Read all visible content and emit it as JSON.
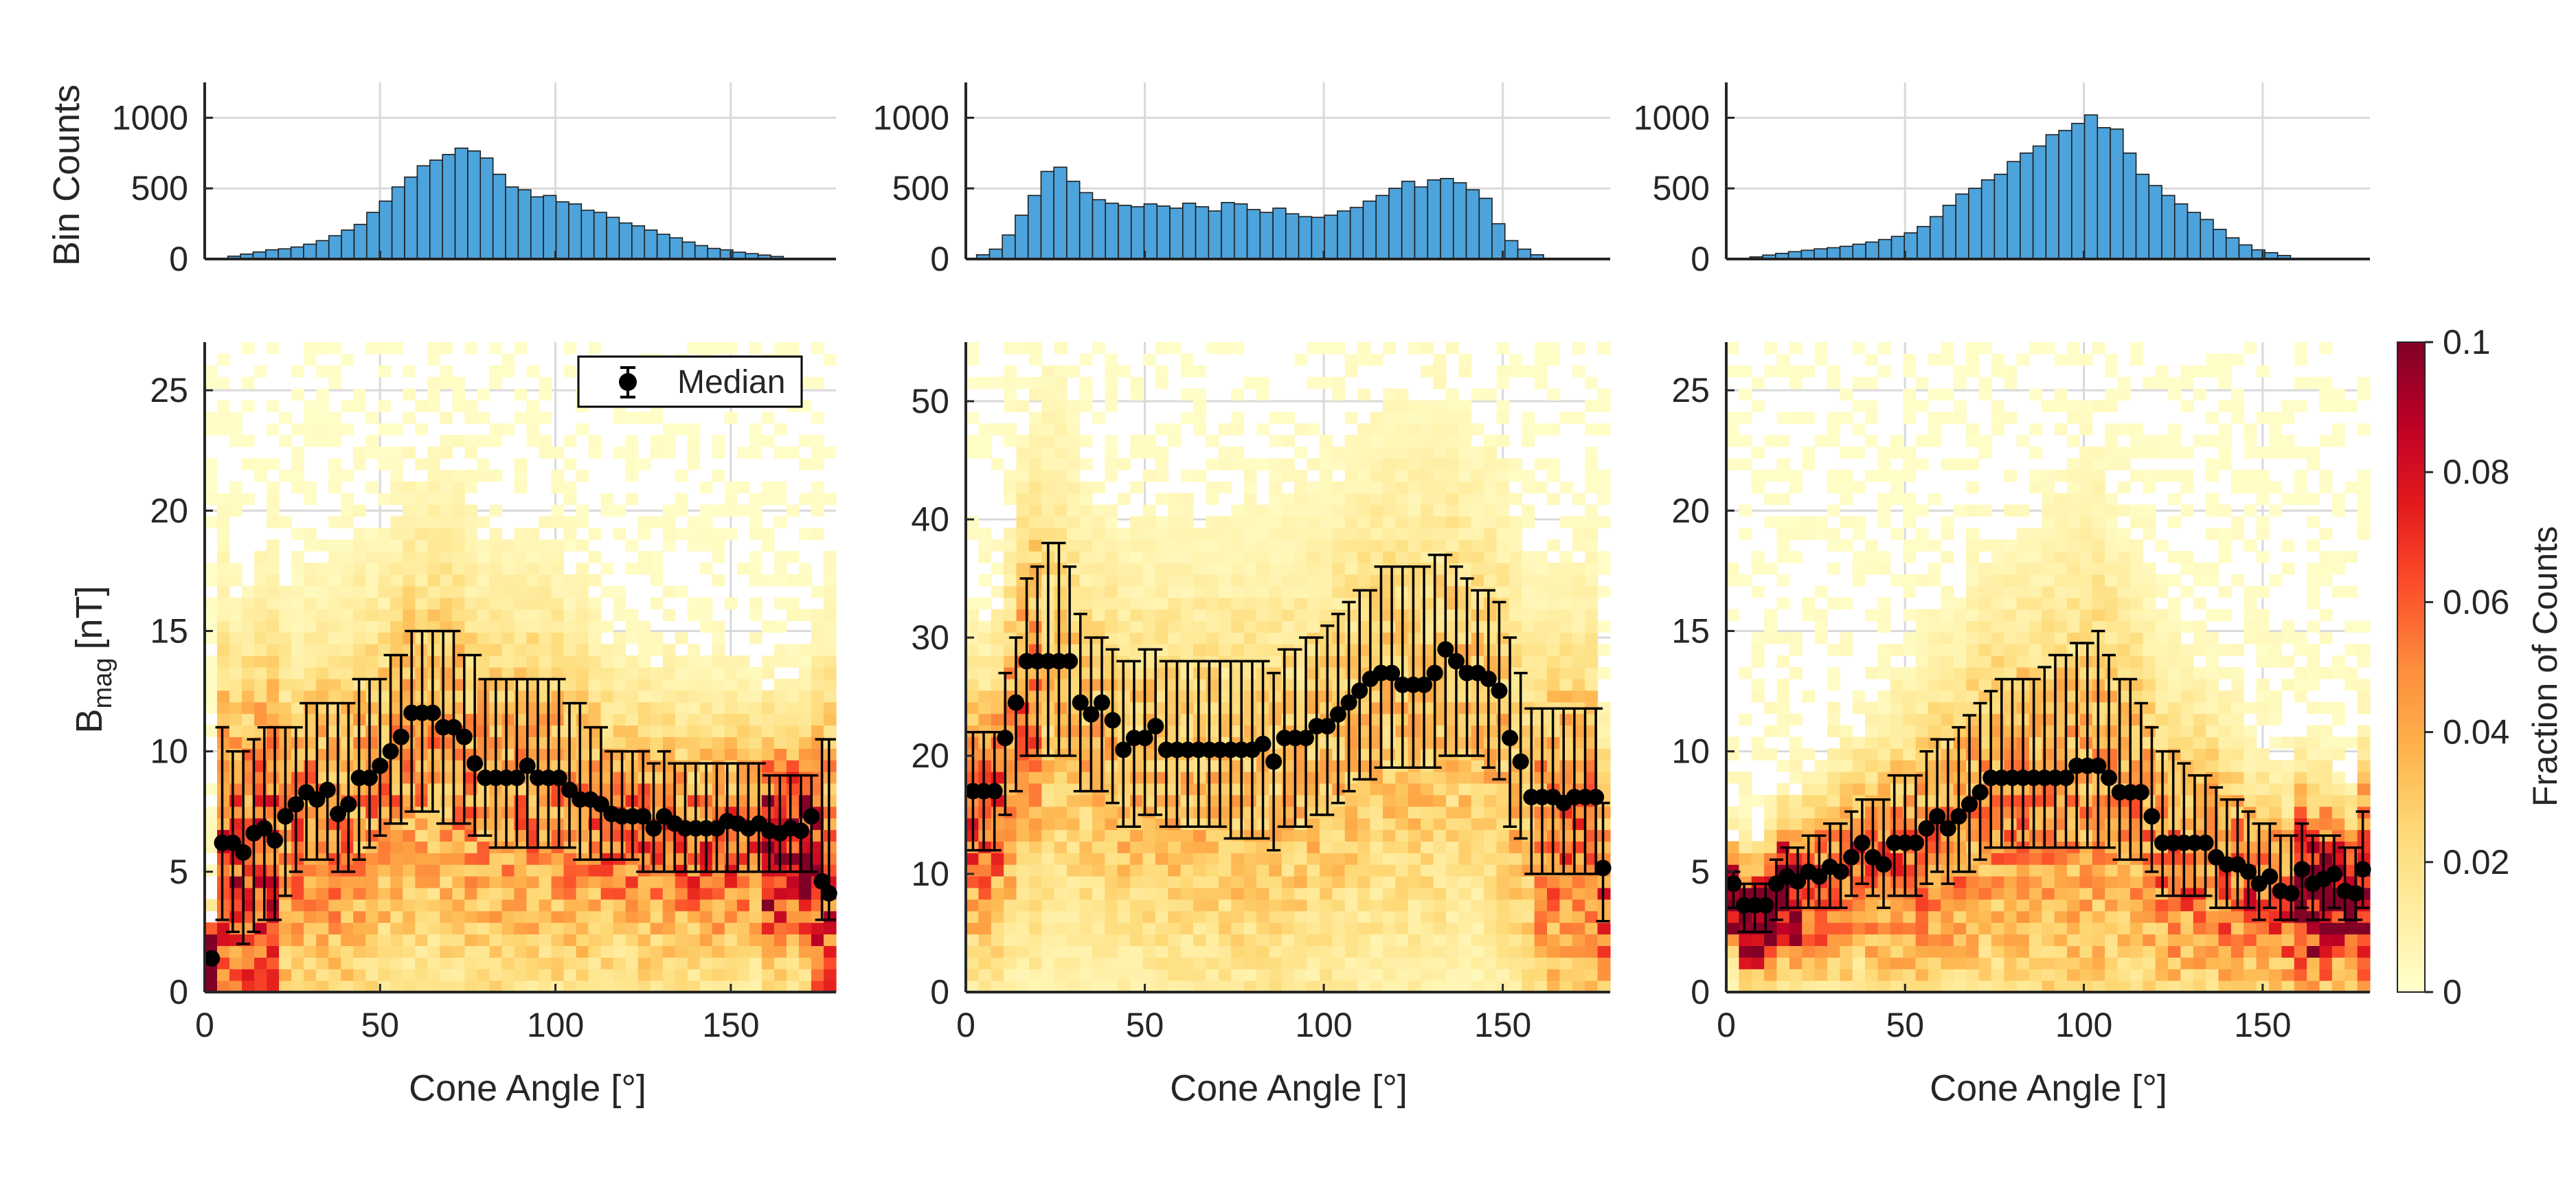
{
  "chart_data": [
    {
      "type": "bar",
      "panel": "top-left",
      "ylabel": "Bin Counts",
      "ylim": [
        0,
        1250
      ],
      "yticks": [
        0,
        500,
        1000
      ],
      "ytick_labels": [
        "0",
        "500",
        "1000"
      ],
      "xlim": [
        0,
        180
      ],
      "xticks": [
        50,
        100,
        150
      ],
      "grid": true,
      "bar_color": "#4DA3DB",
      "bin_width": 3.6,
      "values": [
        5,
        20,
        35,
        50,
        65,
        72,
        85,
        105,
        130,
        165,
        205,
        245,
        330,
        410,
        510,
        580,
        660,
        700,
        740,
        785,
        765,
        715,
        600,
        510,
        490,
        440,
        450,
        405,
        390,
        345,
        330,
        295,
        255,
        235,
        205,
        175,
        150,
        120,
        95,
        75,
        65,
        48,
        38,
        28,
        18
      ]
    },
    {
      "type": "bar",
      "panel": "top-middle",
      "ylim": [
        0,
        1250
      ],
      "yticks": [
        0,
        500,
        1000
      ],
      "ytick_labels": [
        "0",
        "500",
        "1000"
      ],
      "xlim": [
        0,
        180
      ],
      "grid": true,
      "bar_color": "#4DA3DB",
      "bin_width": 3.6,
      "values": [
        30,
        70,
        170,
        310,
        450,
        620,
        650,
        550,
        470,
        420,
        395,
        380,
        370,
        390,
        375,
        360,
        395,
        370,
        340,
        400,
        390,
        350,
        330,
        360,
        320,
        300,
        295,
        310,
        340,
        365,
        410,
        450,
        500,
        550,
        510,
        560,
        570,
        540,
        490,
        430,
        250,
        130,
        70,
        30
      ]
    },
    {
      "type": "bar",
      "panel": "top-right",
      "ylim": [
        0,
        1250
      ],
      "yticks": [
        0,
        500,
        1000
      ],
      "ytick_labels": [
        "0",
        "500",
        "1000"
      ],
      "xlim": [
        0,
        180
      ],
      "grid": true,
      "bar_color": "#4DA3DB",
      "bin_width": 3.6,
      "values": [
        5,
        15,
        28,
        40,
        52,
        62,
        72,
        80,
        90,
        105,
        120,
        138,
        160,
        185,
        230,
        300,
        380,
        460,
        500,
        560,
        600,
        690,
        750,
        800,
        880,
        910,
        960,
        1020,
        930,
        920,
        750,
        600,
        520,
        450,
        390,
        330,
        280,
        210,
        150,
        100,
        65,
        45,
        25
      ]
    },
    {
      "type": "heatmap",
      "panel": "bottom-left",
      "xlabel": "Cone Angle [°]",
      "ylabel": "B_mag [nT]",
      "ylabel_main": "B",
      "ylabel_sub": "mag",
      "ylabel_unit": "[nT]",
      "xlim": [
        0,
        180
      ],
      "ylim": [
        0,
        27
      ],
      "xticks": [
        0,
        50,
        100,
        150
      ],
      "xtick_labels": [
        "0",
        "50",
        "100",
        "150"
      ],
      "yticks": [
        0,
        5,
        10,
        15,
        20,
        25
      ],
      "ytick_labels": [
        "0",
        "5",
        "10",
        "15",
        "20",
        "25"
      ],
      "legend": {
        "label": "Median",
        "location": "top-right"
      },
      "median_series": {
        "x": [
          2,
          5,
          8,
          11,
          14,
          17,
          20,
          23,
          26,
          29,
          32,
          35,
          38,
          41,
          44,
          47,
          50,
          53,
          56,
          59,
          62,
          65,
          68,
          71,
          74,
          77,
          80,
          83,
          86,
          89,
          92,
          95,
          98,
          101,
          104,
          107,
          110,
          113,
          116,
          119,
          122,
          125,
          128,
          131,
          134,
          137,
          140,
          143,
          146,
          149,
          152,
          155,
          158,
          161,
          164,
          167,
          170,
          173,
          176,
          178
        ],
        "median": [
          1.4,
          6.2,
          6.2,
          5.8,
          6.6,
          6.8,
          6.3,
          7.3,
          7.8,
          8.3,
          8.0,
          8.4,
          7.4,
          7.8,
          8.9,
          8.9,
          9.4,
          10.0,
          10.6,
          11.6,
          11.6,
          11.6,
          11.0,
          11.0,
          10.6,
          9.5,
          8.9,
          8.9,
          8.9,
          8.9,
          9.4,
          8.9,
          8.9,
          8.9,
          8.4,
          8.0,
          8.0,
          7.8,
          7.4,
          7.3,
          7.3,
          7.3,
          6.8,
          7.3,
          7.0,
          6.8,
          6.8,
          6.8,
          6.8,
          7.1,
          7.0,
          6.8,
          7.0,
          6.7,
          6.6,
          6.8,
          6.7,
          7.3,
          4.6,
          4.1
        ],
        "lower": [
          1.4,
          3.0,
          2.5,
          2.0,
          2.5,
          3.0,
          3.0,
          4.0,
          5.0,
          5.5,
          5.5,
          5.5,
          5.0,
          5.0,
          5.5,
          6.0,
          6.5,
          7.0,
          7.0,
          7.5,
          7.5,
          7.5,
          7.0,
          7.0,
          7.0,
          6.5,
          6.5,
          6.0,
          6.0,
          6.0,
          6.0,
          6.0,
          6.0,
          6.0,
          6.0,
          5.5,
          5.5,
          5.5,
          5.5,
          5.5,
          5.5,
          5.0,
          5.0,
          5.0,
          5.0,
          5.0,
          5.0,
          5.0,
          5.0,
          5.0,
          5.0,
          5.0,
          5.0,
          5.0,
          5.0,
          5.0,
          5.0,
          5.0,
          3.0,
          3.0
        ],
        "upper": [
          1.4,
          11.0,
          10.0,
          10.0,
          10.5,
          11.0,
          11.0,
          11.0,
          11.0,
          12.0,
          12.0,
          12.0,
          12.0,
          12.0,
          13.0,
          13.0,
          13.0,
          14.0,
          14.0,
          15.0,
          15.0,
          15.0,
          15.0,
          15.0,
          14.0,
          14.0,
          13.0,
          13.0,
          13.0,
          13.0,
          13.0,
          13.0,
          13.0,
          13.0,
          12.0,
          12.0,
          11.0,
          11.0,
          10.0,
          10.0,
          10.0,
          10.0,
          9.5,
          10.0,
          9.5,
          9.5,
          9.5,
          9.5,
          9.5,
          9.5,
          9.5,
          9.5,
          9.5,
          9.0,
          9.0,
          9.0,
          9.0,
          9.0,
          10.5,
          10.5
        ]
      }
    },
    {
      "type": "heatmap",
      "panel": "bottom-middle",
      "xlabel": "Cone Angle [°]",
      "xlim": [
        0,
        180
      ],
      "ylim": [
        0,
        55
      ],
      "xticks": [
        0,
        50,
        100,
        150
      ],
      "xtick_labels": [
        "0",
        "50",
        "100",
        "150"
      ],
      "yticks": [
        0,
        10,
        20,
        30,
        40,
        50
      ],
      "ytick_labels": [
        "0",
        "10",
        "20",
        "30",
        "40",
        "50"
      ],
      "median_series": {
        "x": [
          2,
          5,
          8,
          11,
          14,
          17,
          20,
          23,
          26,
          29,
          32,
          35,
          38,
          41,
          44,
          47,
          50,
          53,
          56,
          59,
          62,
          65,
          68,
          71,
          74,
          77,
          80,
          83,
          86,
          89,
          92,
          95,
          98,
          101,
          104,
          107,
          110,
          113,
          116,
          119,
          122,
          125,
          128,
          131,
          134,
          137,
          140,
          143,
          146,
          149,
          152,
          155,
          158,
          161,
          164,
          167,
          170,
          173,
          176,
          178
        ],
        "median": [
          17,
          17,
          17,
          21.5,
          24.5,
          28,
          28,
          28,
          28,
          28,
          24.5,
          23.5,
          24.5,
          23,
          20.5,
          21.5,
          21.5,
          22.5,
          20.5,
          20.5,
          20.5,
          20.5,
          20.5,
          20.5,
          20.5,
          20.5,
          20.5,
          21,
          19.5,
          21.5,
          21.5,
          21.5,
          22.5,
          22.5,
          23.5,
          24.5,
          25.5,
          26.5,
          27,
          27,
          26,
          26,
          26,
          27,
          29,
          28,
          27,
          27,
          26.5,
          25.5,
          21.5,
          19.5,
          16.5,
          16.5,
          16.5,
          16,
          16.5,
          16.5,
          16.5,
          10.5
        ],
        "upper": [
          22,
          22,
          22,
          27,
          30,
          35,
          36,
          38,
          38,
          36,
          32,
          30,
          30,
          29,
          28,
          28,
          29,
          29,
          28,
          28,
          28,
          28,
          28,
          28,
          28,
          28,
          28,
          28,
          27,
          29,
          29,
          30,
          30,
          31,
          32,
          33,
          34,
          34,
          36,
          36,
          36,
          36,
          36,
          37,
          37,
          36,
          35,
          34,
          34,
          33,
          30,
          27,
          24,
          24,
          24,
          24,
          24,
          24,
          24,
          16
        ],
        "lower": [
          12,
          12,
          12,
          15,
          17,
          20,
          20,
          20,
          20,
          20,
          17,
          17,
          17,
          16,
          14,
          14,
          15,
          15,
          14,
          14,
          14,
          14,
          14,
          14,
          13,
          13,
          13,
          13,
          12,
          14,
          14,
          14,
          15,
          15,
          16,
          17,
          18,
          18,
          19,
          19,
          19,
          19,
          19,
          19,
          20,
          20,
          20,
          20,
          19,
          18,
          14,
          13,
          10,
          10,
          10,
          10,
          10,
          10,
          10,
          6
        ]
      }
    },
    {
      "type": "heatmap",
      "panel": "bottom-right",
      "xlabel": "Cone Angle [°]",
      "xlim": [
        0,
        180
      ],
      "ylim": [
        0,
        27
      ],
      "xticks": [
        0,
        50,
        100,
        150
      ],
      "xtick_labels": [
        "0",
        "50",
        "100",
        "150"
      ],
      "yticks": [
        0,
        5,
        10,
        15,
        20,
        25
      ],
      "ytick_labels": [
        "0",
        "5",
        "10",
        "15",
        "20",
        "25"
      ],
      "colorbar": {
        "label": "Fraction of Counts",
        "ticks": [
          0,
          0.02,
          0.04,
          0.06,
          0.08,
          0.1
        ],
        "tick_labels": [
          "0",
          "0.02",
          "0.04",
          "0.06",
          "0.08",
          "0.1"
        ],
        "range": [
          0,
          0.1
        ]
      },
      "median_series": {
        "x": [
          2,
          5,
          8,
          11,
          14,
          17,
          20,
          23,
          26,
          29,
          32,
          35,
          38,
          41,
          44,
          47,
          50,
          53,
          56,
          59,
          62,
          65,
          68,
          71,
          74,
          77,
          80,
          83,
          86,
          89,
          92,
          95,
          98,
          101,
          104,
          107,
          110,
          113,
          116,
          119,
          122,
          125,
          128,
          131,
          134,
          137,
          140,
          143,
          146,
          149,
          152,
          155,
          158,
          161,
          164,
          167,
          170,
          173,
          176,
          178
        ],
        "median": [
          4.5,
          3.6,
          3.6,
          3.6,
          4.5,
          4.8,
          4.6,
          5.0,
          4.8,
          5.2,
          5.0,
          5.6,
          6.2,
          5.6,
          5.3,
          6.2,
          6.2,
          6.2,
          6.8,
          7.3,
          6.8,
          7.3,
          7.8,
          8.3,
          8.9,
          8.9,
          8.9,
          8.9,
          8.9,
          8.9,
          8.9,
          8.9,
          9.4,
          9.4,
          9.4,
          8.9,
          8.3,
          8.3,
          8.3,
          7.3,
          6.2,
          6.2,
          6.2,
          6.2,
          6.2,
          5.6,
          5.3,
          5.3,
          5.0,
          4.5,
          4.8,
          4.2,
          4.1,
          5.1,
          4.5,
          4.7,
          4.9,
          4.2,
          4.1,
          5.1
        ],
        "upper": [
          5.0,
          4.5,
          4.5,
          4.5,
          5.5,
          6.0,
          6.0,
          6.5,
          6.5,
          7.0,
          7.0,
          7.5,
          8.0,
          8.0,
          8.0,
          9.0,
          9.0,
          9.0,
          10.0,
          10.5,
          10.5,
          11.0,
          11.5,
          12.0,
          12.5,
          13.0,
          13.0,
          13.0,
          13.0,
          13.5,
          14.0,
          14.0,
          14.5,
          14.5,
          15.0,
          14.0,
          13.0,
          13.0,
          12.0,
          11.0,
          10.0,
          10.0,
          9.5,
          9.0,
          9.0,
          8.5,
          8.0,
          8.0,
          7.5,
          7.0,
          7.0,
          6.5,
          6.5,
          7.0,
          6.5,
          6.5,
          6.5,
          6.0,
          6.0,
          7.5
        ],
        "lower": [
          3.5,
          2.5,
          2.5,
          2.5,
          3.0,
          3.5,
          3.5,
          3.5,
          3.5,
          3.5,
          3.5,
          4.0,
          4.5,
          4.0,
          3.5,
          4.0,
          4.0,
          4.0,
          4.5,
          5.0,
          4.5,
          5.0,
          5.0,
          5.5,
          6.0,
          6.0,
          6.0,
          6.0,
          6.0,
          6.0,
          6.0,
          6.0,
          6.0,
          6.0,
          6.0,
          6.0,
          5.5,
          5.5,
          5.5,
          5.0,
          4.0,
          4.0,
          4.0,
          4.0,
          4.0,
          3.5,
          3.5,
          3.5,
          3.5,
          3.0,
          3.5,
          3.0,
          3.0,
          3.5,
          3.0,
          3.0,
          3.5,
          3.0,
          3.0,
          3.5
        ]
      }
    }
  ],
  "colors": {
    "hist_bar": "#4DA3DB",
    "hist_edge": "#1f1f1f",
    "grid": "#d9d9d9",
    "axis": "#262626",
    "median_marker": "#000000",
    "colormap": [
      "#FFFFCC",
      "#FFEDA0",
      "#FED976",
      "#FEB24C",
      "#FD8D3C",
      "#FC4E2A",
      "#E31A1C",
      "#BD0026",
      "#800026"
    ]
  }
}
